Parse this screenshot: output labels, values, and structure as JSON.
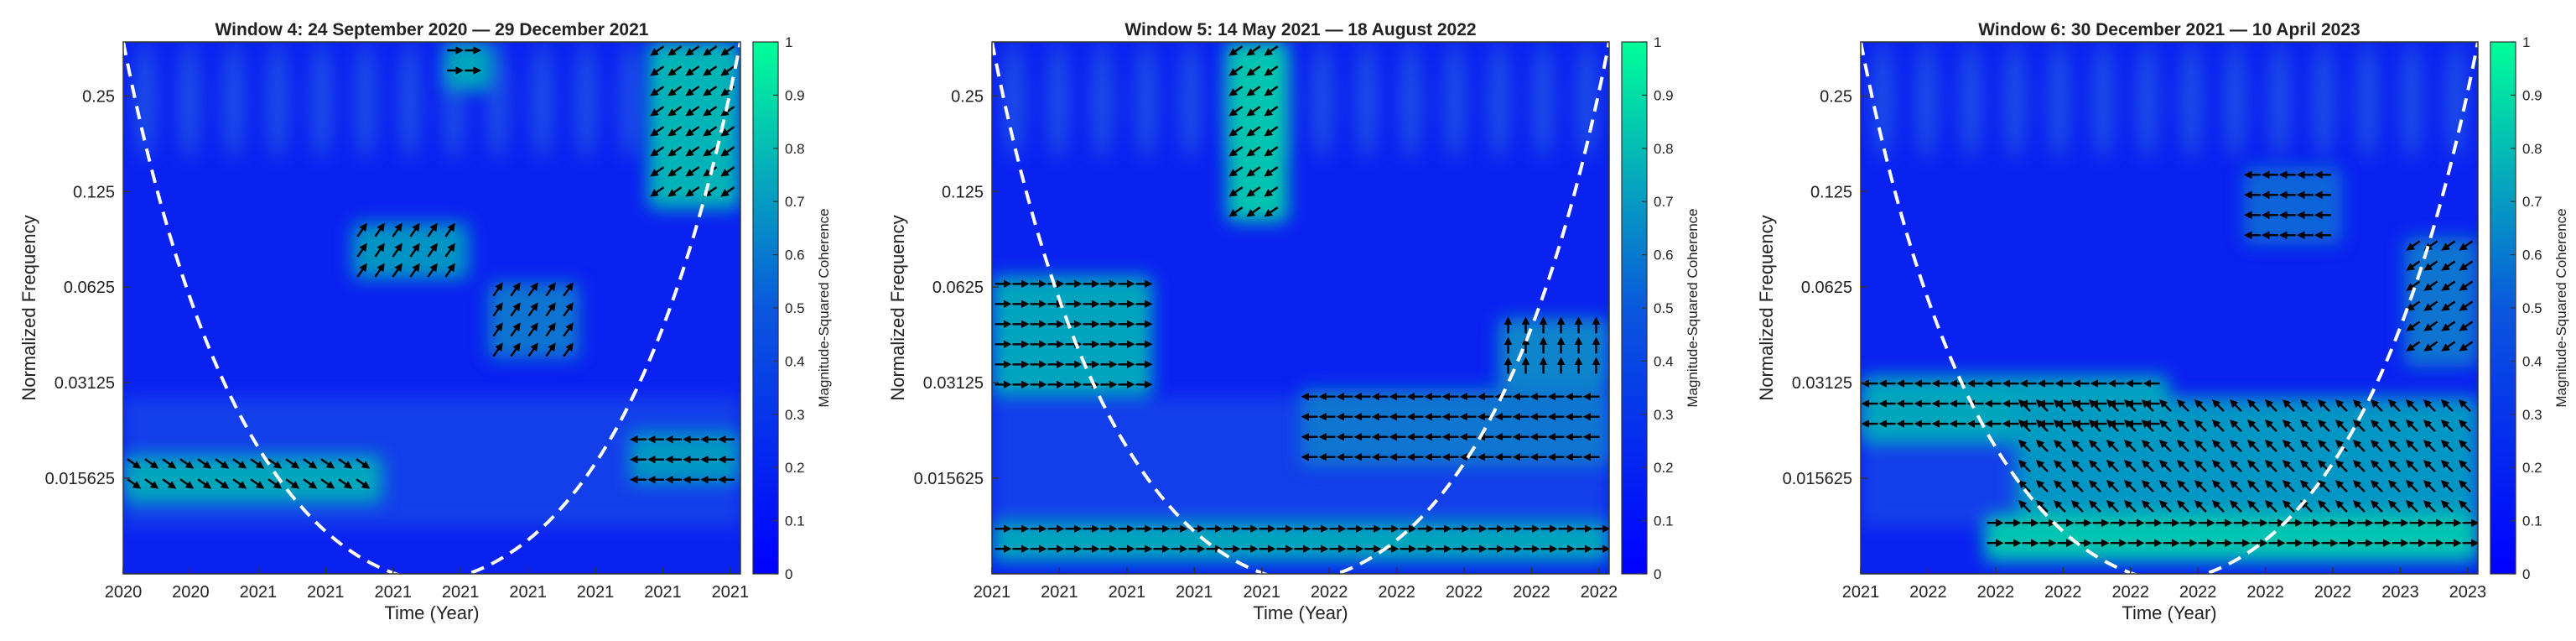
{
  "chart_data": [
    {
      "type": "heatmap",
      "title": "Window 4: 24 September 2020 — 29 December 2021",
      "xlabel": "Time (Year)",
      "ylabel": "Normalized Frequency",
      "x_tick_labels": [
        "2020",
        "2020",
        "2021",
        "2021",
        "2021",
        "2021",
        "2021",
        "2021",
        "2021",
        "2021"
      ],
      "y_tick_labels": [
        "0.25",
        "0.125",
        "0.0625",
        "0.03125",
        "0.015625"
      ],
      "y_ticks": [
        0.25,
        0.125,
        0.0625,
        0.03125,
        0.015625
      ],
      "ylim": [
        0.0078,
        0.37
      ],
      "y_scale": "log2",
      "colorbar": {
        "label": "Magnitude-Squared Coherence",
        "range": [
          0,
          1
        ],
        "ticks": [
          "0",
          "0.1",
          "0.2",
          "0.3",
          "0.4",
          "0.5",
          "0.6",
          "0.7",
          "0.8",
          "0.9",
          "1"
        ]
      },
      "colormap": [
        "#0000ff",
        "#00ff99"
      ],
      "cone_of_influence": "dashed-white",
      "coherent_regions": [
        {
          "t": [
            0.0,
            0.42
          ],
          "f": [
            0.013,
            0.0185
          ],
          "coherence": 0.75,
          "arrow": "down-right"
        },
        {
          "t": [
            0.37,
            0.56
          ],
          "f": [
            0.066,
            0.1
          ],
          "coherence": 0.7,
          "arrow": "up-right"
        },
        {
          "t": [
            0.59,
            0.74
          ],
          "f": [
            0.037,
            0.065
          ],
          "coherence": 0.6,
          "arrow": "up-right"
        },
        {
          "t": [
            0.82,
            1.0
          ],
          "f": [
            0.015,
            0.022
          ],
          "coherence": 0.7,
          "arrow": "left"
        },
        {
          "t": [
            0.85,
            1.0
          ],
          "f": [
            0.11,
            0.37
          ],
          "coherence": 0.8,
          "arrow": "down-left"
        },
        {
          "t": [
            0.52,
            0.6
          ],
          "f": [
            0.26,
            0.37
          ],
          "coherence": 0.75,
          "arrow": "right"
        }
      ]
    },
    {
      "type": "heatmap",
      "title": "Window 5: 14 May 2021 — 18 August 2022",
      "xlabel": "Time (Year)",
      "ylabel": "Normalized Frequency",
      "x_tick_labels": [
        "2021",
        "2021",
        "2021",
        "2021",
        "2021",
        "2022",
        "2022",
        "2022",
        "2022",
        "2022"
      ],
      "y_tick_labels": [
        "0.25",
        "0.125",
        "0.0625",
        "0.03125",
        "0.015625"
      ],
      "y_ticks": [
        0.25,
        0.125,
        0.0625,
        0.03125,
        0.015625
      ],
      "ylim": [
        0.0078,
        0.37
      ],
      "y_scale": "log2",
      "colorbar": {
        "label": "Magnitude-Squared Coherence",
        "range": [
          0,
          1
        ],
        "ticks": [
          "0",
          "0.1",
          "0.2",
          "0.3",
          "0.4",
          "0.5",
          "0.6",
          "0.7",
          "0.8",
          "0.9",
          "1"
        ]
      },
      "colormap": [
        "#0000ff",
        "#00ff99"
      ],
      "cone_of_influence": "dashed-white",
      "coherent_regions": [
        {
          "t": [
            0.0,
            0.26
          ],
          "f": [
            0.028,
            0.068
          ],
          "coherence": 0.75,
          "arrow": "right"
        },
        {
          "t": [
            0.38,
            0.48
          ],
          "f": [
            0.1,
            0.37
          ],
          "coherence": 0.85,
          "arrow": "down-left"
        },
        {
          "t": [
            0.5,
            1.0
          ],
          "f": [
            0.017,
            0.03
          ],
          "coherence": 0.6,
          "arrow": "left"
        },
        {
          "t": [
            0.82,
            1.0
          ],
          "f": [
            0.03,
            0.05
          ],
          "coherence": 0.65,
          "arrow": "up"
        },
        {
          "t": [
            0.0,
            1.0
          ],
          "f": [
            0.0085,
            0.0115
          ],
          "coherence": 0.75,
          "arrow": "right"
        }
      ]
    },
    {
      "type": "heatmap",
      "title": "Window 6: 30 December 2021 — 10 April 2023",
      "xlabel": "Time (Year)",
      "ylabel": "Normalized Frequency",
      "x_tick_labels": [
        "2021",
        "2022",
        "2022",
        "2022",
        "2022",
        "2022",
        "2022",
        "2022",
        "2023",
        "2023"
      ],
      "y_tick_labels": [
        "0.25",
        "0.125",
        "0.0625",
        "0.03125",
        "0.015625"
      ],
      "y_ticks": [
        0.25,
        0.125,
        0.0625,
        0.03125,
        0.015625
      ],
      "ylim": [
        0.0078,
        0.37
      ],
      "y_scale": "log2",
      "colorbar": {
        "label": "Magnitude-Squared Coherence",
        "range": [
          0,
          1
        ],
        "ticks": [
          "0",
          "0.1",
          "0.2",
          "0.3",
          "0.4",
          "0.5",
          "0.6",
          "0.7",
          "0.8",
          "0.9",
          "1"
        ]
      },
      "colormap": [
        "#0000ff",
        "#00ff99"
      ],
      "cone_of_influence": "dashed-white",
      "coherent_regions": [
        {
          "t": [
            0.0,
            0.5
          ],
          "f": [
            0.02,
            0.033
          ],
          "coherence": 0.75,
          "arrow": "left"
        },
        {
          "t": [
            0.25,
            1.0
          ],
          "f": [
            0.012,
            0.028
          ],
          "coherence": 0.7,
          "arrow": "up-left"
        },
        {
          "t": [
            0.2,
            1.0
          ],
          "f": [
            0.0085,
            0.012
          ],
          "coherence": 0.85,
          "arrow": "right"
        },
        {
          "t": [
            0.62,
            0.78
          ],
          "f": [
            0.085,
            0.15
          ],
          "coherence": 0.55,
          "arrow": "left"
        },
        {
          "t": [
            0.88,
            1.0
          ],
          "f": [
            0.035,
            0.09
          ],
          "coherence": 0.6,
          "arrow": "down-left"
        }
      ]
    }
  ]
}
